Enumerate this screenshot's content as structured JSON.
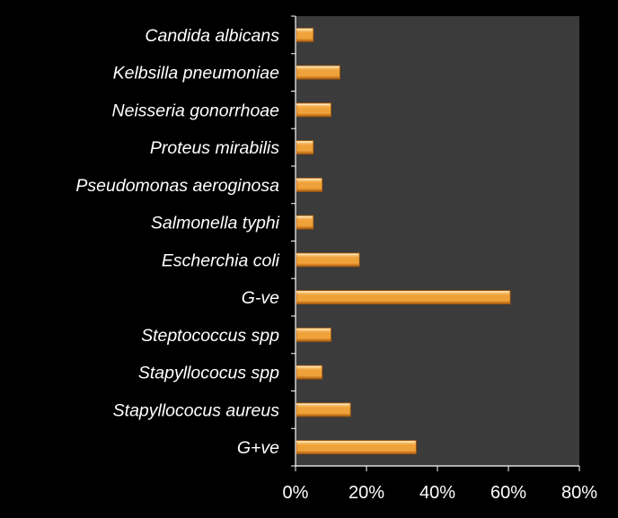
{
  "chart_data": {
    "type": "bar",
    "orientation": "horizontal",
    "categories": [
      "Candida albicans",
      "Kelbsilla pneumoniae",
      "Neisseria gonorrhoae",
      "Proteus mirabilis",
      "Pseudomonas aeroginosa",
      "Salmonella typhi",
      "Escherchia coli",
      "G-ve",
      "Steptococcus spp",
      "Stapyllococus spp",
      "Stapyllococus aureus",
      "G+ve"
    ],
    "values": [
      5,
      12.5,
      10,
      5,
      7.5,
      5,
      18,
      60.5,
      10,
      7.5,
      15.5,
      34
    ],
    "xlim": [
      0,
      80
    ],
    "xticks": [
      "0%",
      "20%",
      "40%",
      "60%",
      "80%"
    ],
    "tick_values": [
      0,
      20,
      40,
      60,
      80
    ],
    "colors": {
      "page_background": "#000000",
      "plot_background": "#3b3b3b",
      "bar_light": "#ffd99a",
      "bar_mid": "#f0a23a",
      "bar_dark": "#a8590c",
      "axis": "#ffffff",
      "text": "#ffffff"
    },
    "grid": false,
    "legend": "none"
  }
}
